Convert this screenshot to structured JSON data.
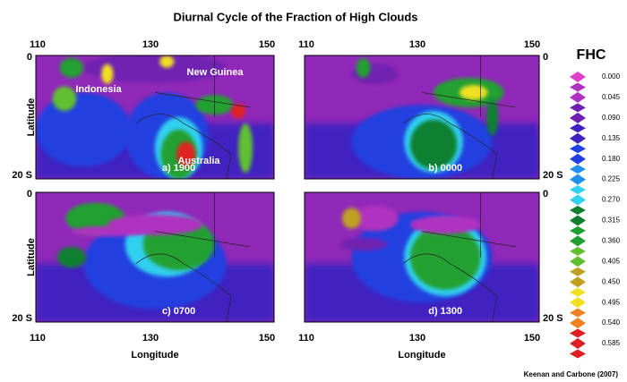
{
  "title": "Diurnal Cycle of the Fraction of High Clouds",
  "axes": {
    "lon_ticks": [
      "110",
      "130",
      "150"
    ],
    "lat_ticks": [
      "0",
      "20 S"
    ],
    "xlabel": "Longitude",
    "ylabel": "Latitude"
  },
  "panels": [
    {
      "label": "a) 1900",
      "regions": [
        "Indonesia",
        "New Guinea",
        "Australia"
      ]
    },
    {
      "label": "b) 0000"
    },
    {
      "label": "c) 0700"
    },
    {
      "label": "d) 1300"
    }
  ],
  "colorbar": {
    "title": "FHC",
    "labels": [
      "0.000",
      "0.045",
      "0.090",
      "0.135",
      "0.180",
      "0.225",
      "0.270",
      "0.315",
      "0.360",
      "0.405",
      "0.450",
      "0.495",
      "0.540",
      "0.585"
    ],
    "colors": [
      "#e040c8",
      "#b030c0",
      "#7020b0",
      "#4020c0",
      "#2040e0",
      "#2090f0",
      "#30d0f0",
      "#108030",
      "#20a030",
      "#60c030",
      "#c0a020",
      "#f0e020",
      "#f08020",
      "#e02020"
    ]
  },
  "credit": "Keenan and Carbone (2007)"
}
